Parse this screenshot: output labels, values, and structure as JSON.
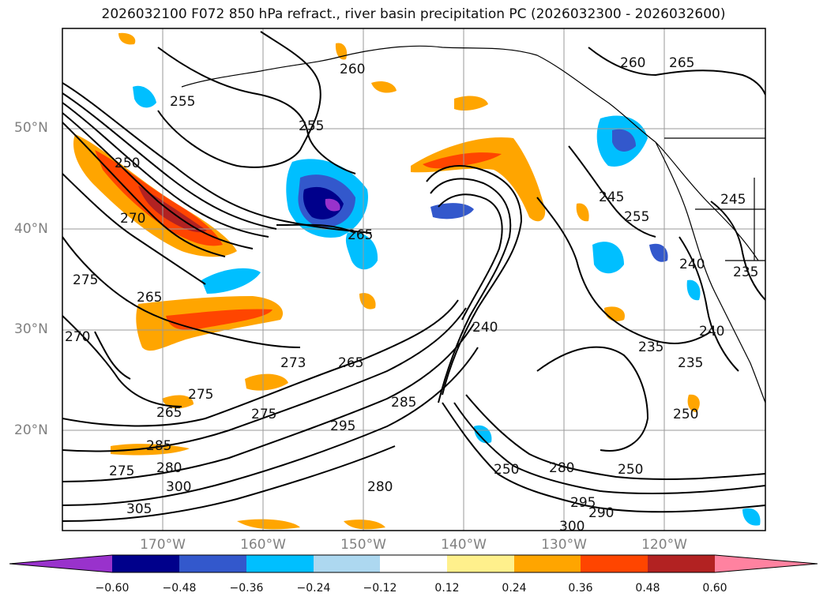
{
  "title": "2026032100 F072 850 hPa refract., river basin precipitation PC (2026032300 - 2026032600)",
  "map": {
    "latitude_labels": [
      "50°N",
      "40°N",
      "30°N",
      "20°N"
    ],
    "longitude_labels": [
      "170°W",
      "160°W",
      "150°W",
      "140°W",
      "130°W",
      "120°W"
    ],
    "contour_labels": [
      "260",
      "265",
      "255",
      "260",
      "255",
      "250",
      "270",
      "265",
      "275",
      "265",
      "270",
      "273",
      "275",
      "265",
      "275",
      "265",
      "295",
      "285",
      "285",
      "280",
      "275",
      "300",
      "305",
      "280",
      "250",
      "280",
      "250",
      "295",
      "290",
      "300",
      "245",
      "255",
      "240",
      "245",
      "235",
      "240",
      "235",
      "235",
      "250",
      "240"
    ]
  },
  "colorbar": {
    "ticks": [
      "−0.60",
      "−0.48",
      "−0.36",
      "−0.24",
      "−0.12",
      "0.12",
      "0.24",
      "0.36",
      "0.48",
      "0.60"
    ],
    "colors": [
      "#9932cc",
      "#00008b",
      "#3358cc",
      "#00bfff",
      "#add8f0",
      "#ffffff",
      "#fff08c",
      "#ffa500",
      "#ff4500",
      "#b22222",
      "#ff82a0"
    ]
  }
}
